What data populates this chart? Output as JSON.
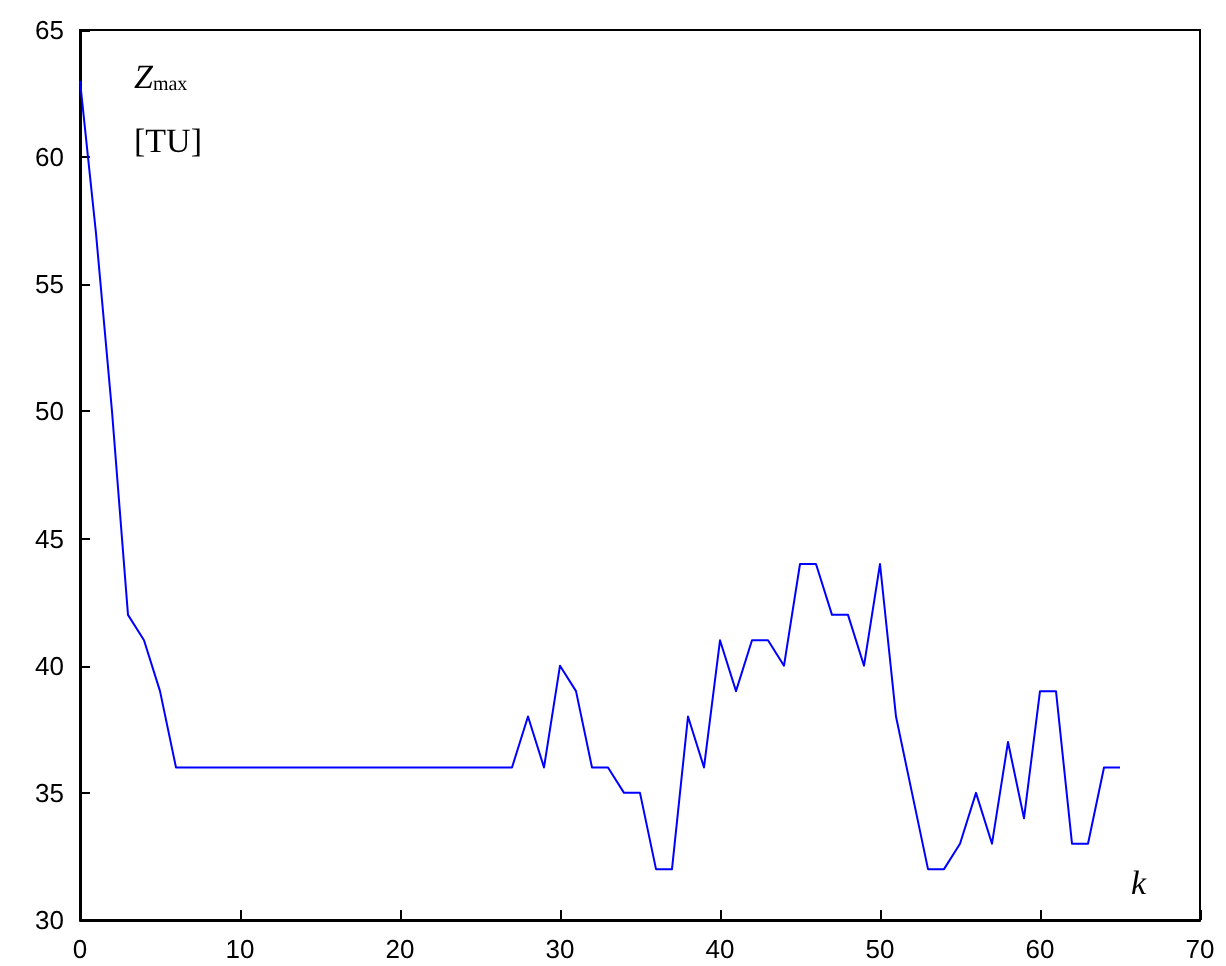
{
  "chart_data": {
    "type": "line",
    "ylabel": "Z$_{max}$",
    "xlabel": "k",
    "annotations": [
      "[TU]"
    ],
    "x": [
      0,
      1,
      2,
      3,
      4,
      5,
      6,
      7,
      8,
      9,
      10,
      11,
      12,
      13,
      14,
      15,
      16,
      17,
      18,
      19,
      20,
      21,
      22,
      23,
      24,
      25,
      26,
      27,
      28,
      29,
      30,
      31,
      32,
      33,
      34,
      35,
      36,
      37,
      38,
      39,
      40,
      41,
      42,
      43,
      44,
      45,
      46,
      47,
      48,
      49,
      50,
      51,
      52,
      53,
      54,
      55,
      56,
      57,
      58,
      59,
      60,
      61,
      62,
      63,
      64,
      65
    ],
    "series": [
      {
        "color": "#0000ff",
        "values": [
          63,
          57,
          50,
          42,
          41,
          39,
          36,
          36,
          36,
          36,
          36,
          36,
          36,
          36,
          36,
          36,
          36,
          36,
          36,
          36,
          36,
          36,
          36,
          36,
          36,
          36,
          36,
          36,
          38,
          36,
          40,
          39,
          36,
          36,
          35,
          35,
          32,
          32,
          38,
          36,
          41,
          39,
          41,
          41,
          40,
          44,
          44,
          42,
          42,
          40,
          44,
          38,
          35,
          32,
          32,
          33,
          35,
          33,
          37,
          34,
          39,
          39,
          33,
          33,
          36,
          36
        ]
      }
    ],
    "xlim": [
      0,
      70
    ],
    "ylim": [
      30,
      65
    ],
    "xticks": [
      0,
      10,
      20,
      30,
      40,
      50,
      60,
      70
    ],
    "yticks": [
      30,
      35,
      40,
      45,
      50,
      55,
      60,
      65
    ],
    "grid": false,
    "marker": "none",
    "line_style": "solid"
  }
}
